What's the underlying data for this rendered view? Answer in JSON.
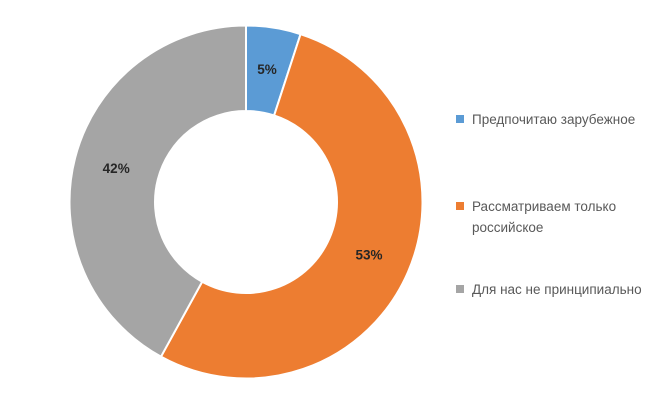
{
  "chart_data": {
    "type": "pie",
    "subtype": "donut",
    "title": "",
    "categories": [
      "Предпочитаю зарубежное",
      "Рассматриваем только российское",
      "Для нас не принципиально"
    ],
    "values": [
      5,
      53,
      42
    ],
    "slices": [
      {
        "label": "Предпочитаю зарубежное",
        "value": 5,
        "pct_label": "5%",
        "color": "#5B9BD5"
      },
      {
        "label": "Рассматриваем только российское",
        "value": 53,
        "pct_label": "53%",
        "color": "#ED7D31"
      },
      {
        "label": "Для нас не принципиально",
        "value": 42,
        "pct_label": "42%",
        "color": "#A5A5A5"
      }
    ],
    "start_angle_deg": 0,
    "direction": "clockwise",
    "donut_hole_ratio": 0.52,
    "legend_position": "right",
    "data_label_format": "percent",
    "grid": false,
    "colors": {
      "data_label_text": "#262626",
      "legend_text": "#595959",
      "slice_border": "#FFFFFF",
      "background": "#FFFFFF"
    }
  }
}
